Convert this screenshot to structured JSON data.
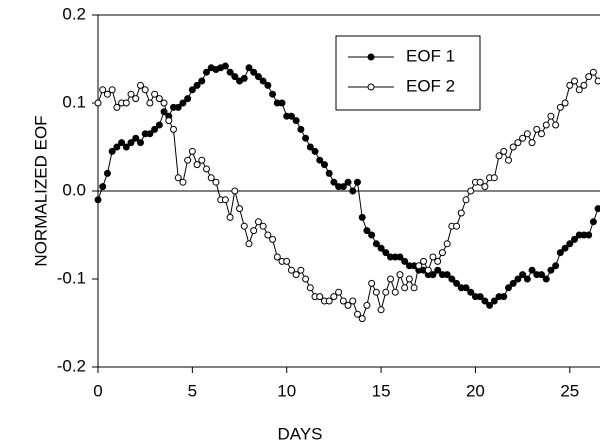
{
  "chart_data": {
    "type": "line",
    "x_label": "DAYS",
    "y_label": "NORMALIZED EOF",
    "xlim": [
      0,
      26.6
    ],
    "xticks": [
      0,
      5,
      10,
      15,
      20,
      25
    ],
    "ylim": [
      -0.2,
      0.2
    ],
    "yticks": [
      0.2,
      0.1,
      {
        "value": 0,
        "label": "0.0"
      },
      -0.1,
      -0.2
    ],
    "legend": "upper right",
    "zero_line": true,
    "x": [
      0,
      0.25,
      0.5,
      0.75,
      1,
      1.25,
      1.5,
      1.75,
      2,
      2.25,
      2.5,
      2.75,
      3,
      3.25,
      3.5,
      3.75,
      4,
      4.25,
      4.5,
      4.75,
      5,
      5.25,
      5.5,
      5.75,
      6,
      6.25,
      6.5,
      6.75,
      7,
      7.25,
      7.5,
      7.75,
      8,
      8.25,
      8.5,
      8.75,
      9,
      9.25,
      9.5,
      9.75,
      10,
      10.25,
      10.5,
      10.75,
      11,
      11.25,
      11.5,
      11.75,
      12,
      12.25,
      12.5,
      12.75,
      13,
      13.25,
      13.5,
      13.75,
      14,
      14.25,
      14.5,
      14.75,
      15,
      15.25,
      15.5,
      15.75,
      16,
      16.25,
      16.5,
      16.75,
      17,
      17.25,
      17.5,
      17.75,
      18,
      18.25,
      18.5,
      18.75,
      19,
      19.25,
      19.5,
      19.75,
      20,
      20.25,
      20.5,
      20.75,
      21,
      21.25,
      21.5,
      21.75,
      22,
      22.25,
      22.5,
      22.75,
      23,
      23.25,
      23.5,
      23.75,
      24,
      24.25,
      24.5,
      24.75,
      25,
      25.25,
      25.5,
      25.75,
      26,
      26.25,
      26.5
    ],
    "series": [
      {
        "name": "EOF 1",
        "color": "#000000",
        "marker": "filled",
        "values": [
          -0.01,
          0.005,
          0.02,
          0.045,
          0.05,
          0.055,
          0.05,
          0.055,
          0.06,
          0.055,
          0.065,
          0.065,
          0.07,
          0.075,
          0.09,
          0.085,
          0.095,
          0.095,
          0.1,
          0.105,
          0.115,
          0.12,
          0.125,
          0.135,
          0.14,
          0.138,
          0.14,
          0.142,
          0.135,
          0.13,
          0.125,
          0.128,
          0.14,
          0.135,
          0.13,
          0.125,
          0.12,
          0.11,
          0.1,
          0.1,
          0.085,
          0.085,
          0.08,
          0.07,
          0.06,
          0.05,
          0.045,
          0.035,
          0.03,
          0.02,
          0.01,
          0.005,
          0.005,
          0.01,
          0,
          0.01,
          -0.03,
          -0.045,
          -0.05,
          -0.06,
          -0.065,
          -0.07,
          -0.075,
          -0.075,
          -0.075,
          -0.08,
          -0.085,
          -0.085,
          -0.09,
          -0.09,
          -0.095,
          -0.095,
          -0.09,
          -0.095,
          -0.095,
          -0.1,
          -0.105,
          -0.11,
          -0.11,
          -0.115,
          -0.12,
          -0.12,
          -0.125,
          -0.13,
          -0.125,
          -0.12,
          -0.12,
          -0.11,
          -0.105,
          -0.1,
          -0.095,
          -0.1,
          -0.09,
          -0.095,
          -0.095,
          -0.1,
          -0.09,
          -0.085,
          -0.07,
          -0.065,
          -0.06,
          -0.055,
          -0.05,
          -0.05,
          -0.05,
          -0.035,
          -0.02
        ]
      },
      {
        "name": "EOF 2",
        "color": "#000000",
        "marker": "open",
        "values": [
          0.1,
          0.115,
          0.11,
          0.115,
          0.095,
          0.1,
          0.1,
          0.11,
          0.105,
          0.12,
          0.115,
          0.1,
          0.11,
          0.105,
          0.1,
          0.08,
          0.07,
          0.015,
          0.01,
          0.035,
          0.045,
          0.03,
          0.035,
          0.025,
          0.015,
          0.01,
          -0.01,
          -0.01,
          -0.03,
          0,
          -0.02,
          -0.04,
          -0.06,
          -0.045,
          -0.035,
          -0.04,
          -0.05,
          -0.055,
          -0.075,
          -0.08,
          -0.08,
          -0.09,
          -0.095,
          -0.09,
          -0.1,
          -0.11,
          -0.12,
          -0.12,
          -0.125,
          -0.125,
          -0.12,
          -0.115,
          -0.125,
          -0.13,
          -0.125,
          -0.14,
          -0.145,
          -0.13,
          -0.105,
          -0.115,
          -0.135,
          -0.115,
          -0.1,
          -0.115,
          -0.095,
          -0.11,
          -0.1,
          -0.11,
          -0.085,
          -0.08,
          -0.09,
          -0.075,
          -0.08,
          -0.07,
          -0.06,
          -0.04,
          -0.04,
          -0.025,
          -0.01,
          0,
          0.01,
          0.01,
          0.005,
          0.015,
          0.015,
          0.04,
          0.045,
          0.035,
          0.05,
          0.055,
          0.06,
          0.065,
          0.055,
          0.07,
          0.065,
          0.075,
          0.085,
          0.075,
          0.095,
          0.1,
          0.12,
          0.125,
          0.115,
          0.12,
          0.13,
          0.135,
          0.125
        ]
      }
    ]
  }
}
